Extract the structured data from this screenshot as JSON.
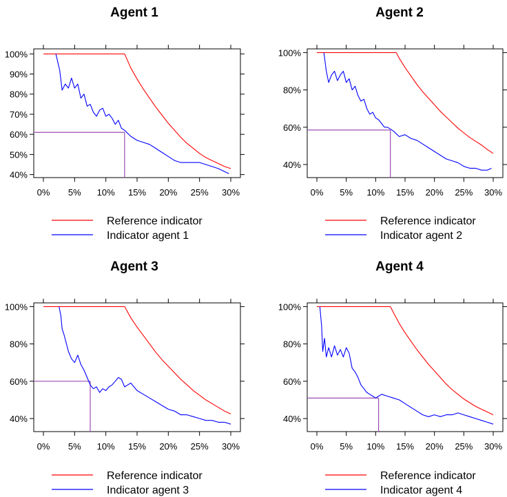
{
  "colors": {
    "reference": "#ff0000",
    "agent": "#0000ff",
    "marker": "#9b4bb5",
    "axis": "#000000"
  },
  "chart_data": [
    {
      "type": "line",
      "title": "Agent 1",
      "xlim": [
        0,
        30
      ],
      "ylim": [
        38.5,
        102.5
      ],
      "x_ticks": [
        "0%",
        "5%",
        "10%",
        "15%",
        "20%",
        "25%",
        "30%"
      ],
      "x_tick_values": [
        0,
        5,
        10,
        15,
        20,
        25,
        30
      ],
      "y_ticks": [
        "40%",
        "50%",
        "60%",
        "70%",
        "80%",
        "90%",
        "100%"
      ],
      "y_tick_values": [
        40,
        50,
        60,
        70,
        80,
        90,
        100
      ],
      "legend_position": "bottom",
      "marker_point": {
        "x": 13,
        "y": 61
      },
      "series": [
        {
          "name": "Reference indicator",
          "x": [
            0,
            13,
            14,
            15,
            16,
            17,
            18,
            19,
            20,
            21,
            22,
            23,
            24,
            25,
            26,
            27,
            28,
            29,
            30
          ],
          "y": [
            100,
            100,
            93,
            87.5,
            82.5,
            78,
            73.5,
            69.5,
            65.5,
            62,
            58.5,
            55.5,
            53,
            50.5,
            48.5,
            47,
            45.5,
            44,
            43
          ]
        },
        {
          "name": "Indicator agent 1",
          "x": [
            2,
            2.6,
            3,
            3.5,
            4,
            4.5,
            5,
            5.5,
            6,
            6.5,
            7,
            7.5,
            8,
            8.5,
            9,
            9.5,
            10,
            10.5,
            11,
            11.5,
            12,
            12.5,
            13,
            14,
            15,
            16,
            17,
            18,
            19,
            20,
            21,
            22,
            23,
            24,
            25,
            26,
            27,
            28,
            29,
            29.7
          ],
          "y": [
            100,
            92,
            82,
            85,
            83,
            88,
            83,
            85,
            78,
            80,
            74,
            75,
            71,
            69,
            72,
            73,
            69,
            70,
            68,
            65,
            67,
            63,
            62,
            59,
            57,
            56,
            55,
            53,
            51,
            49,
            47,
            46,
            46,
            46,
            46,
            45,
            44,
            43,
            41.5,
            40.5
          ]
        }
      ]
    },
    {
      "type": "line",
      "title": "Agent 2",
      "xlim": [
        0,
        30
      ],
      "ylim": [
        33,
        102
      ],
      "x_ticks": [
        "0%",
        "5%",
        "10%",
        "15%",
        "20%",
        "25%",
        "30%"
      ],
      "x_tick_values": [
        0,
        5,
        10,
        15,
        20,
        25,
        30
      ],
      "y_ticks": [
        "40%",
        "60%",
        "80%",
        "100%"
      ],
      "y_tick_values": [
        40,
        60,
        80,
        100
      ],
      "legend_position": "bottom",
      "marker_point": {
        "x": 12.5,
        "y": 58.5
      },
      "series": [
        {
          "name": "Reference indicator",
          "x": [
            0,
            13.5,
            14,
            15,
            16,
            17,
            18,
            19,
            20,
            21,
            22,
            23,
            24,
            25,
            26,
            27,
            28,
            29,
            30
          ],
          "y": [
            100,
            100,
            97,
            92,
            87.5,
            83,
            79,
            75.5,
            72,
            68.5,
            65.5,
            62.5,
            59.5,
            57,
            54.5,
            52.5,
            50.5,
            48,
            46
          ]
        },
        {
          "name": "Indicator agent 2",
          "x": [
            1.2,
            1.6,
            2,
            2.5,
            3,
            3.5,
            4,
            4.5,
            5,
            5.5,
            6,
            6.5,
            7,
            7.5,
            8,
            8.5,
            9,
            9.5,
            10,
            10.5,
            11,
            11.5,
            12,
            13,
            14,
            15,
            16,
            17,
            18,
            19,
            20,
            21,
            22,
            23,
            24,
            25,
            26,
            27,
            28,
            29,
            29.7
          ],
          "y": [
            100,
            90,
            84,
            88,
            90,
            85,
            88,
            90,
            84,
            86,
            80,
            82,
            77,
            74,
            75,
            70,
            67,
            68,
            65,
            64,
            62,
            60,
            60,
            58,
            55,
            56,
            54,
            53,
            51,
            49,
            47,
            45,
            43,
            42,
            41,
            39,
            38,
            38,
            37,
            37,
            38
          ]
        }
      ]
    },
    {
      "type": "line",
      "title": "Agent 3",
      "xlim": [
        0,
        30
      ],
      "ylim": [
        33,
        102
      ],
      "x_ticks": [
        "0%",
        "5%",
        "10%",
        "15%",
        "20%",
        "25%",
        "30%"
      ],
      "x_tick_values": [
        0,
        5,
        10,
        15,
        20,
        25,
        30
      ],
      "y_ticks": [
        "40%",
        "60%",
        "80%",
        "100%"
      ],
      "y_tick_values": [
        40,
        60,
        80,
        100
      ],
      "legend_position": "bottom",
      "marker_point": {
        "x": 7.5,
        "y": 60
      },
      "series": [
        {
          "name": "Reference indicator",
          "x": [
            0,
            13,
            14,
            15,
            16,
            17,
            18,
            19,
            20,
            21,
            22,
            23,
            24,
            25,
            26,
            27,
            28,
            29,
            30
          ],
          "y": [
            100,
            100,
            94,
            89,
            84.5,
            80,
            75.5,
            71.5,
            68,
            64.5,
            61,
            58,
            55,
            52.5,
            50,
            48,
            46,
            44,
            42.5
          ]
        },
        {
          "name": "Indicator agent 3",
          "x": [
            2.5,
            2.8,
            3,
            3.3,
            3.7,
            4,
            4.5,
            5,
            5.5,
            6,
            6.5,
            7,
            7.5,
            8,
            8.5,
            9,
            9.5,
            10,
            10.5,
            11,
            11.5,
            12,
            12.5,
            13,
            13.5,
            14,
            14.5,
            15,
            16,
            17,
            18,
            19,
            20,
            21,
            22,
            23,
            24,
            25,
            26,
            27,
            28,
            29,
            30
          ],
          "y": [
            100,
            95,
            88,
            85,
            80,
            76,
            72,
            70,
            74,
            69,
            66,
            62,
            58,
            56,
            57,
            54,
            56,
            55,
            57,
            58,
            60,
            62,
            61,
            57,
            58,
            59,
            57,
            55,
            53,
            51,
            49,
            47,
            45,
            44,
            42,
            42,
            41,
            40,
            39,
            39,
            38,
            38,
            37
          ]
        }
      ]
    },
    {
      "type": "line",
      "title": "Agent 4",
      "xlim": [
        0,
        30
      ],
      "ylim": [
        33,
        102
      ],
      "x_ticks": [
        "0%",
        "5%",
        "10%",
        "15%",
        "20%",
        "25%",
        "30%"
      ],
      "x_tick_values": [
        0,
        5,
        10,
        15,
        20,
        25,
        30
      ],
      "y_ticks": [
        "40%",
        "60%",
        "80%",
        "100%"
      ],
      "y_tick_values": [
        40,
        60,
        80,
        100
      ],
      "legend_position": "bottom",
      "marker_point": {
        "x": 10.5,
        "y": 51
      },
      "series": [
        {
          "name": "Reference indicator",
          "x": [
            0,
            12.5,
            13,
            14,
            15,
            16,
            17,
            18,
            19,
            20,
            21,
            22,
            23,
            24,
            25,
            26,
            27,
            28,
            29,
            30
          ],
          "y": [
            100,
            100,
            97,
            91,
            86,
            81.5,
            77,
            73,
            69,
            65.5,
            62,
            58.5,
            55.5,
            53,
            50.5,
            48.5,
            46.5,
            45,
            43.5,
            42
          ]
        },
        {
          "name": "Indicator agent 4",
          "x": [
            0.5,
            0.8,
            1,
            1.3,
            1.6,
            2,
            2.5,
            3,
            3.5,
            4,
            4.5,
            5,
            5.5,
            6,
            6.5,
            7,
            7.5,
            8,
            8.5,
            9,
            9.5,
            10,
            10.5,
            11,
            12,
            13,
            14,
            15,
            16,
            17,
            18,
            19,
            20,
            21,
            22,
            23,
            24,
            25,
            26,
            27,
            28,
            29,
            30
          ],
          "y": [
            100,
            90,
            76,
            83,
            73,
            78,
            73,
            79,
            74,
            77,
            73,
            78,
            75,
            67,
            65,
            62,
            58,
            56,
            54,
            53,
            52,
            51,
            52,
            53,
            52,
            51,
            50,
            48,
            46,
            44,
            42,
            41,
            42,
            41,
            42,
            42,
            43,
            42,
            41,
            40,
            39,
            38,
            37
          ]
        }
      ]
    }
  ]
}
